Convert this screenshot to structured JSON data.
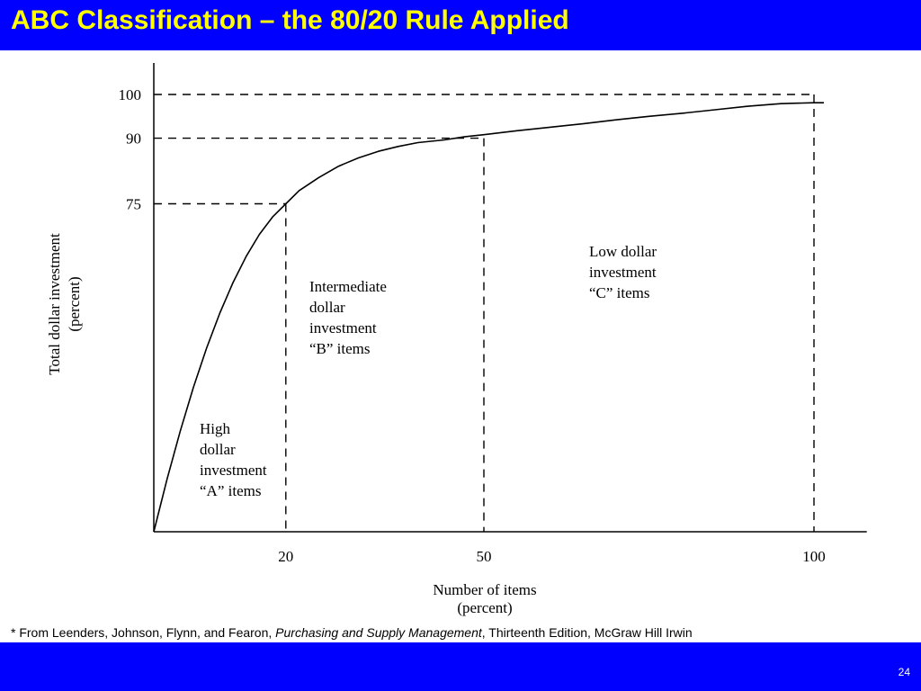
{
  "slide": {
    "title": "ABC Classification – the 80/20 Rule Applied",
    "page_number": "24",
    "title_color": "#ffff00",
    "bar_color": "#0000ff"
  },
  "citation": {
    "prefix": "* From Leenders, Johnson, Flynn, and Fearon, ",
    "book": "Purchasing and Supply Management",
    "suffix": ", Thirteenth Edition, McGraw Hill Irwin"
  },
  "chart_data": {
    "type": "line",
    "xlabel": [
      "Number of items",
      "(percent)"
    ],
    "ylabel": [
      "Total dollar investment",
      "(percent)"
    ],
    "x_ticks": [
      20,
      50,
      100
    ],
    "y_ticks": [
      75,
      90,
      100
    ],
    "xlim": [
      0,
      108
    ],
    "ylim": [
      0,
      103
    ],
    "grid": false,
    "series": [
      {
        "x": [
          0,
          2,
          4,
          6,
          8,
          10,
          12,
          14,
          16,
          18,
          20,
          22,
          25,
          28,
          31,
          34,
          37,
          40,
          44,
          47,
          50,
          55,
          60,
          65,
          70,
          75,
          80,
          85,
          90,
          95,
          100,
          101.5
        ],
        "y": [
          0,
          12,
          23,
          33,
          42,
          50,
          57,
          63,
          68,
          72,
          75,
          78,
          81,
          83.6,
          85.5,
          87,
          88.1,
          89,
          89.6,
          90.3,
          90.8,
          91.7,
          92.5,
          93.3,
          94.2,
          95.0,
          95.7,
          96.5,
          97.3,
          97.9,
          98.1,
          98.1
        ]
      }
    ],
    "reference_lines": [
      {
        "x": 20,
        "y": 75
      },
      {
        "x": 50,
        "y": 90
      },
      {
        "x": 100,
        "y": 100
      }
    ],
    "annotations": [
      {
        "lines": [
          "High",
          "dollar",
          "investment",
          "“A” items"
        ]
      },
      {
        "lines": [
          "Intermediate",
          "dollar",
          "investment",
          "“B” items"
        ]
      },
      {
        "lines": [
          "Low dollar",
          "investment",
          "“C” items"
        ]
      }
    ]
  }
}
